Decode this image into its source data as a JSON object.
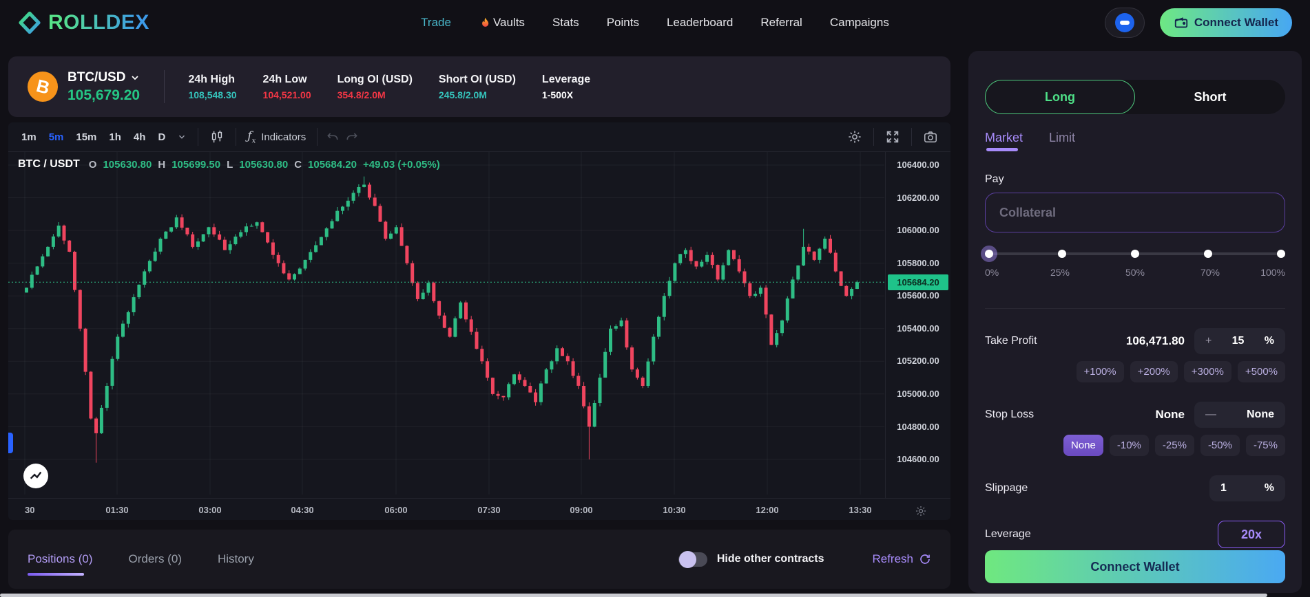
{
  "brand": {
    "name": "ROLLDEX"
  },
  "nav": {
    "items": [
      {
        "label": "Trade",
        "active": true
      },
      {
        "label": "Vaults",
        "icon": "flame-icon"
      },
      {
        "label": "Stats"
      },
      {
        "label": "Points"
      },
      {
        "label": "Leaderboard"
      },
      {
        "label": "Referral"
      },
      {
        "label": "Campaigns"
      }
    ],
    "connect_wallet_label": "Connect Wallet"
  },
  "market_bar": {
    "pair": "BTC/USD",
    "price": "105,679.20",
    "stats": [
      {
        "label": "24h High",
        "value": "108,548.30",
        "color": "#35c4bc"
      },
      {
        "label": "24h Low",
        "value": "104,521.00",
        "color": "#f23645"
      },
      {
        "label": "Long OI (USD)",
        "value": "354.8/2.0M",
        "color": "#f23645"
      },
      {
        "label": "Short OI (USD)",
        "value": "245.8/2.0M",
        "color": "#35c4bc"
      },
      {
        "label": "Leverage",
        "value": "1-500X",
        "color": "#ffffff"
      }
    ]
  },
  "chart": {
    "timeframes": [
      "1m",
      "5m",
      "15m",
      "1h",
      "4h",
      "D"
    ],
    "active_timeframe": "5m",
    "indicators_label": "Indicators",
    "legend": {
      "symbol": "BTC / USDT",
      "items": [
        {
          "k": "O",
          "v": "105630.80"
        },
        {
          "k": "H",
          "v": "105699.50"
        },
        {
          "k": "L",
          "v": "105630.80"
        },
        {
          "k": "C",
          "v": "105684.20"
        }
      ],
      "change": "+49.03 (+0.05%)"
    },
    "y_ticks": [
      "106400.00",
      "106200.00",
      "106000.00",
      "105800.00",
      "105600.00",
      "105400.00",
      "105200.00",
      "105000.00",
      "104800.00",
      "104600.00"
    ],
    "x_ticks": [
      "30",
      "01:30",
      "03:00",
      "04:30",
      "06:00",
      "07:30",
      "09:00",
      "10:30",
      "12:00",
      "13:30"
    ],
    "price_tag": "105684.20"
  },
  "chart_data": {
    "type": "candlestick",
    "symbol": "BTC/USDT",
    "interval": "5m",
    "title": "BTC / USDT 5m candles",
    "y_range": [
      104600,
      106400
    ],
    "current_price": 105684.2,
    "up_color": "#2ebd85",
    "down_color": "#f0455f",
    "num_candles": 156,
    "close_anchors": [
      [
        0,
        105650
      ],
      [
        2,
        105780
      ],
      [
        4,
        105900
      ],
      [
        6,
        106030
      ],
      [
        8,
        105870
      ],
      [
        10,
        105400
      ],
      [
        12,
        104850
      ],
      [
        13,
        104760
      ],
      [
        15,
        105050
      ],
      [
        17,
        105350
      ],
      [
        19,
        105500
      ],
      [
        22,
        105750
      ],
      [
        25,
        105950
      ],
      [
        28,
        106080
      ],
      [
        31,
        105900
      ],
      [
        34,
        106020
      ],
      [
        37,
        105880
      ],
      [
        40,
        105990
      ],
      [
        43,
        106050
      ],
      [
        46,
        105850
      ],
      [
        49,
        105700
      ],
      [
        52,
        105820
      ],
      [
        55,
        105960
      ],
      [
        58,
        106120
      ],
      [
        61,
        106230
      ],
      [
        63,
        106280
      ],
      [
        65,
        106150
      ],
      [
        67,
        105950
      ],
      [
        69,
        106020
      ],
      [
        71,
        105800
      ],
      [
        73,
        105580
      ],
      [
        75,
        105680
      ],
      [
        77,
        105480
      ],
      [
        79,
        105350
      ],
      [
        81,
        105560
      ],
      [
        83,
        105380
      ],
      [
        85,
        105200
      ],
      [
        87,
        105000
      ],
      [
        89,
        104980
      ],
      [
        91,
        105120
      ],
      [
        93,
        105050
      ],
      [
        95,
        104950
      ],
      [
        97,
        105150
      ],
      [
        99,
        105280
      ],
      [
        101,
        105200
      ],
      [
        103,
        105050
      ],
      [
        105,
        104800
      ],
      [
        107,
        105100
      ],
      [
        109,
        105400
      ],
      [
        111,
        105450
      ],
      [
        113,
        105150
      ],
      [
        115,
        105050
      ],
      [
        117,
        105350
      ],
      [
        119,
        105600
      ],
      [
        121,
        105800
      ],
      [
        123,
        105880
      ],
      [
        125,
        105780
      ],
      [
        127,
        105850
      ],
      [
        129,
        105700
      ],
      [
        131,
        105880
      ],
      [
        133,
        105750
      ],
      [
        135,
        105600
      ],
      [
        137,
        105650
      ],
      [
        139,
        105300
      ],
      [
        141,
        105450
      ],
      [
        143,
        105700
      ],
      [
        145,
        105900
      ],
      [
        147,
        105820
      ],
      [
        149,
        105950
      ],
      [
        151,
        105750
      ],
      [
        153,
        105600
      ],
      [
        155,
        105684.2
      ]
    ],
    "wick_overrides": {
      "13": {
        "low": 104580
      },
      "63": {
        "high": 106330
      },
      "105": {
        "low": 104600
      },
      "145": {
        "high": 106010
      }
    }
  },
  "order_panel": {
    "side_tabs": [
      {
        "label": "Long",
        "active": true
      },
      {
        "label": "Short",
        "active": false
      }
    ],
    "order_type_tabs": [
      {
        "label": "Market",
        "active": true
      },
      {
        "label": "Limit",
        "active": false
      }
    ],
    "pay": {
      "label": "Pay",
      "placeholder": "Collateral"
    },
    "slider": {
      "labels": [
        "0%",
        "25%",
        "50%",
        "70%",
        "100%"
      ],
      "active_index": 0
    },
    "take_profit": {
      "label": "Take Profit",
      "price": "106,471.80",
      "sign": "+",
      "percent": "15",
      "unit": "%",
      "quick": [
        "+100%",
        "+200%",
        "+300%",
        "+500%"
      ]
    },
    "stop_loss": {
      "label": "Stop Loss",
      "price": "None",
      "sign": "—",
      "percent": "None",
      "quick": [
        "None",
        "-10%",
        "-25%",
        "-50%",
        "-75%"
      ],
      "active_quick": "None"
    },
    "slippage": {
      "label": "Slippage",
      "value": "1",
      "unit": "%"
    },
    "leverage": {
      "label": "Leverage",
      "value": "20x"
    },
    "submit_label": "Connect Wallet"
  },
  "bottom_panel": {
    "tabs": [
      {
        "label": "Positions (0)",
        "active": true
      },
      {
        "label": "Orders (0)",
        "active": false
      },
      {
        "label": "History",
        "active": false
      }
    ],
    "hide_other_contracts_label": "Hide other contracts",
    "refresh_label": "Refresh"
  },
  "colors": {
    "accent_purple": "#a78bfa",
    "up": "#2ebd85",
    "down": "#f23645",
    "gradient_start": "#6fe87f",
    "gradient_end": "#4aa9f2",
    "tag_green": "#1fc38a"
  }
}
